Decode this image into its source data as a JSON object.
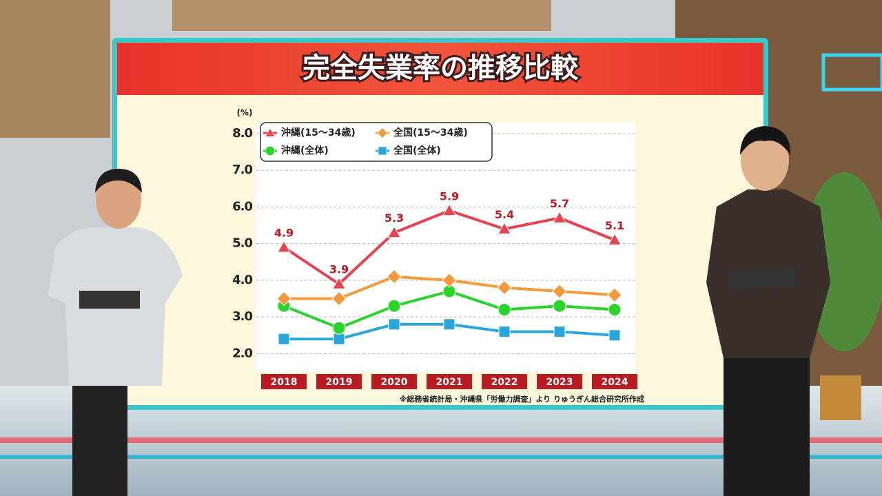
{
  "chart_data": {
    "type": "line",
    "title": "完全失業率の推移比較",
    "y_label": "(%)",
    "note": "※総務省統計局・沖縄県「労働力調査」より りゅうぎん総合研究所作成",
    "categories": [
      "2018",
      "2019",
      "2020",
      "2021",
      "2022",
      "2023",
      "2024"
    ],
    "series": [
      {
        "name": "沖縄(15〜34歳)",
        "color": "#e8424f",
        "marker": "triangle",
        "show_labels": true,
        "values": [
          4.9,
          3.9,
          5.3,
          5.9,
          5.4,
          5.7,
          5.1
        ]
      },
      {
        "name": "全国(15〜34歳)",
        "color": "#f39a3c",
        "marker": "diamond",
        "show_labels": false,
        "values": [
          3.5,
          3.5,
          4.1,
          4.0,
          3.8,
          3.7,
          3.6
        ]
      },
      {
        "name": "沖縄(全体)",
        "color": "#2bd42b",
        "marker": "circle",
        "show_labels": false,
        "values": [
          3.3,
          2.7,
          3.3,
          3.7,
          3.2,
          3.3,
          3.2
        ]
      },
      {
        "name": "全国(全体)",
        "color": "#2aa7d8",
        "marker": "square",
        "show_labels": false,
        "values": [
          2.4,
          2.4,
          2.8,
          2.8,
          2.6,
          2.6,
          2.5
        ]
      }
    ],
    "ylim": [
      1.5,
      8.3
    ],
    "yticks": [
      {
        "value": 2,
        "label": "2.0"
      },
      {
        "value": 3,
        "label": "3.0"
      },
      {
        "value": 4,
        "label": "4.0"
      },
      {
        "value": 5,
        "label": "5.0"
      },
      {
        "value": 6,
        "label": "6.0"
      },
      {
        "value": 7,
        "label": "7.0"
      },
      {
        "value": 8,
        "label": "8.0"
      }
    ],
    "grid": true,
    "legend": "top-left"
  }
}
